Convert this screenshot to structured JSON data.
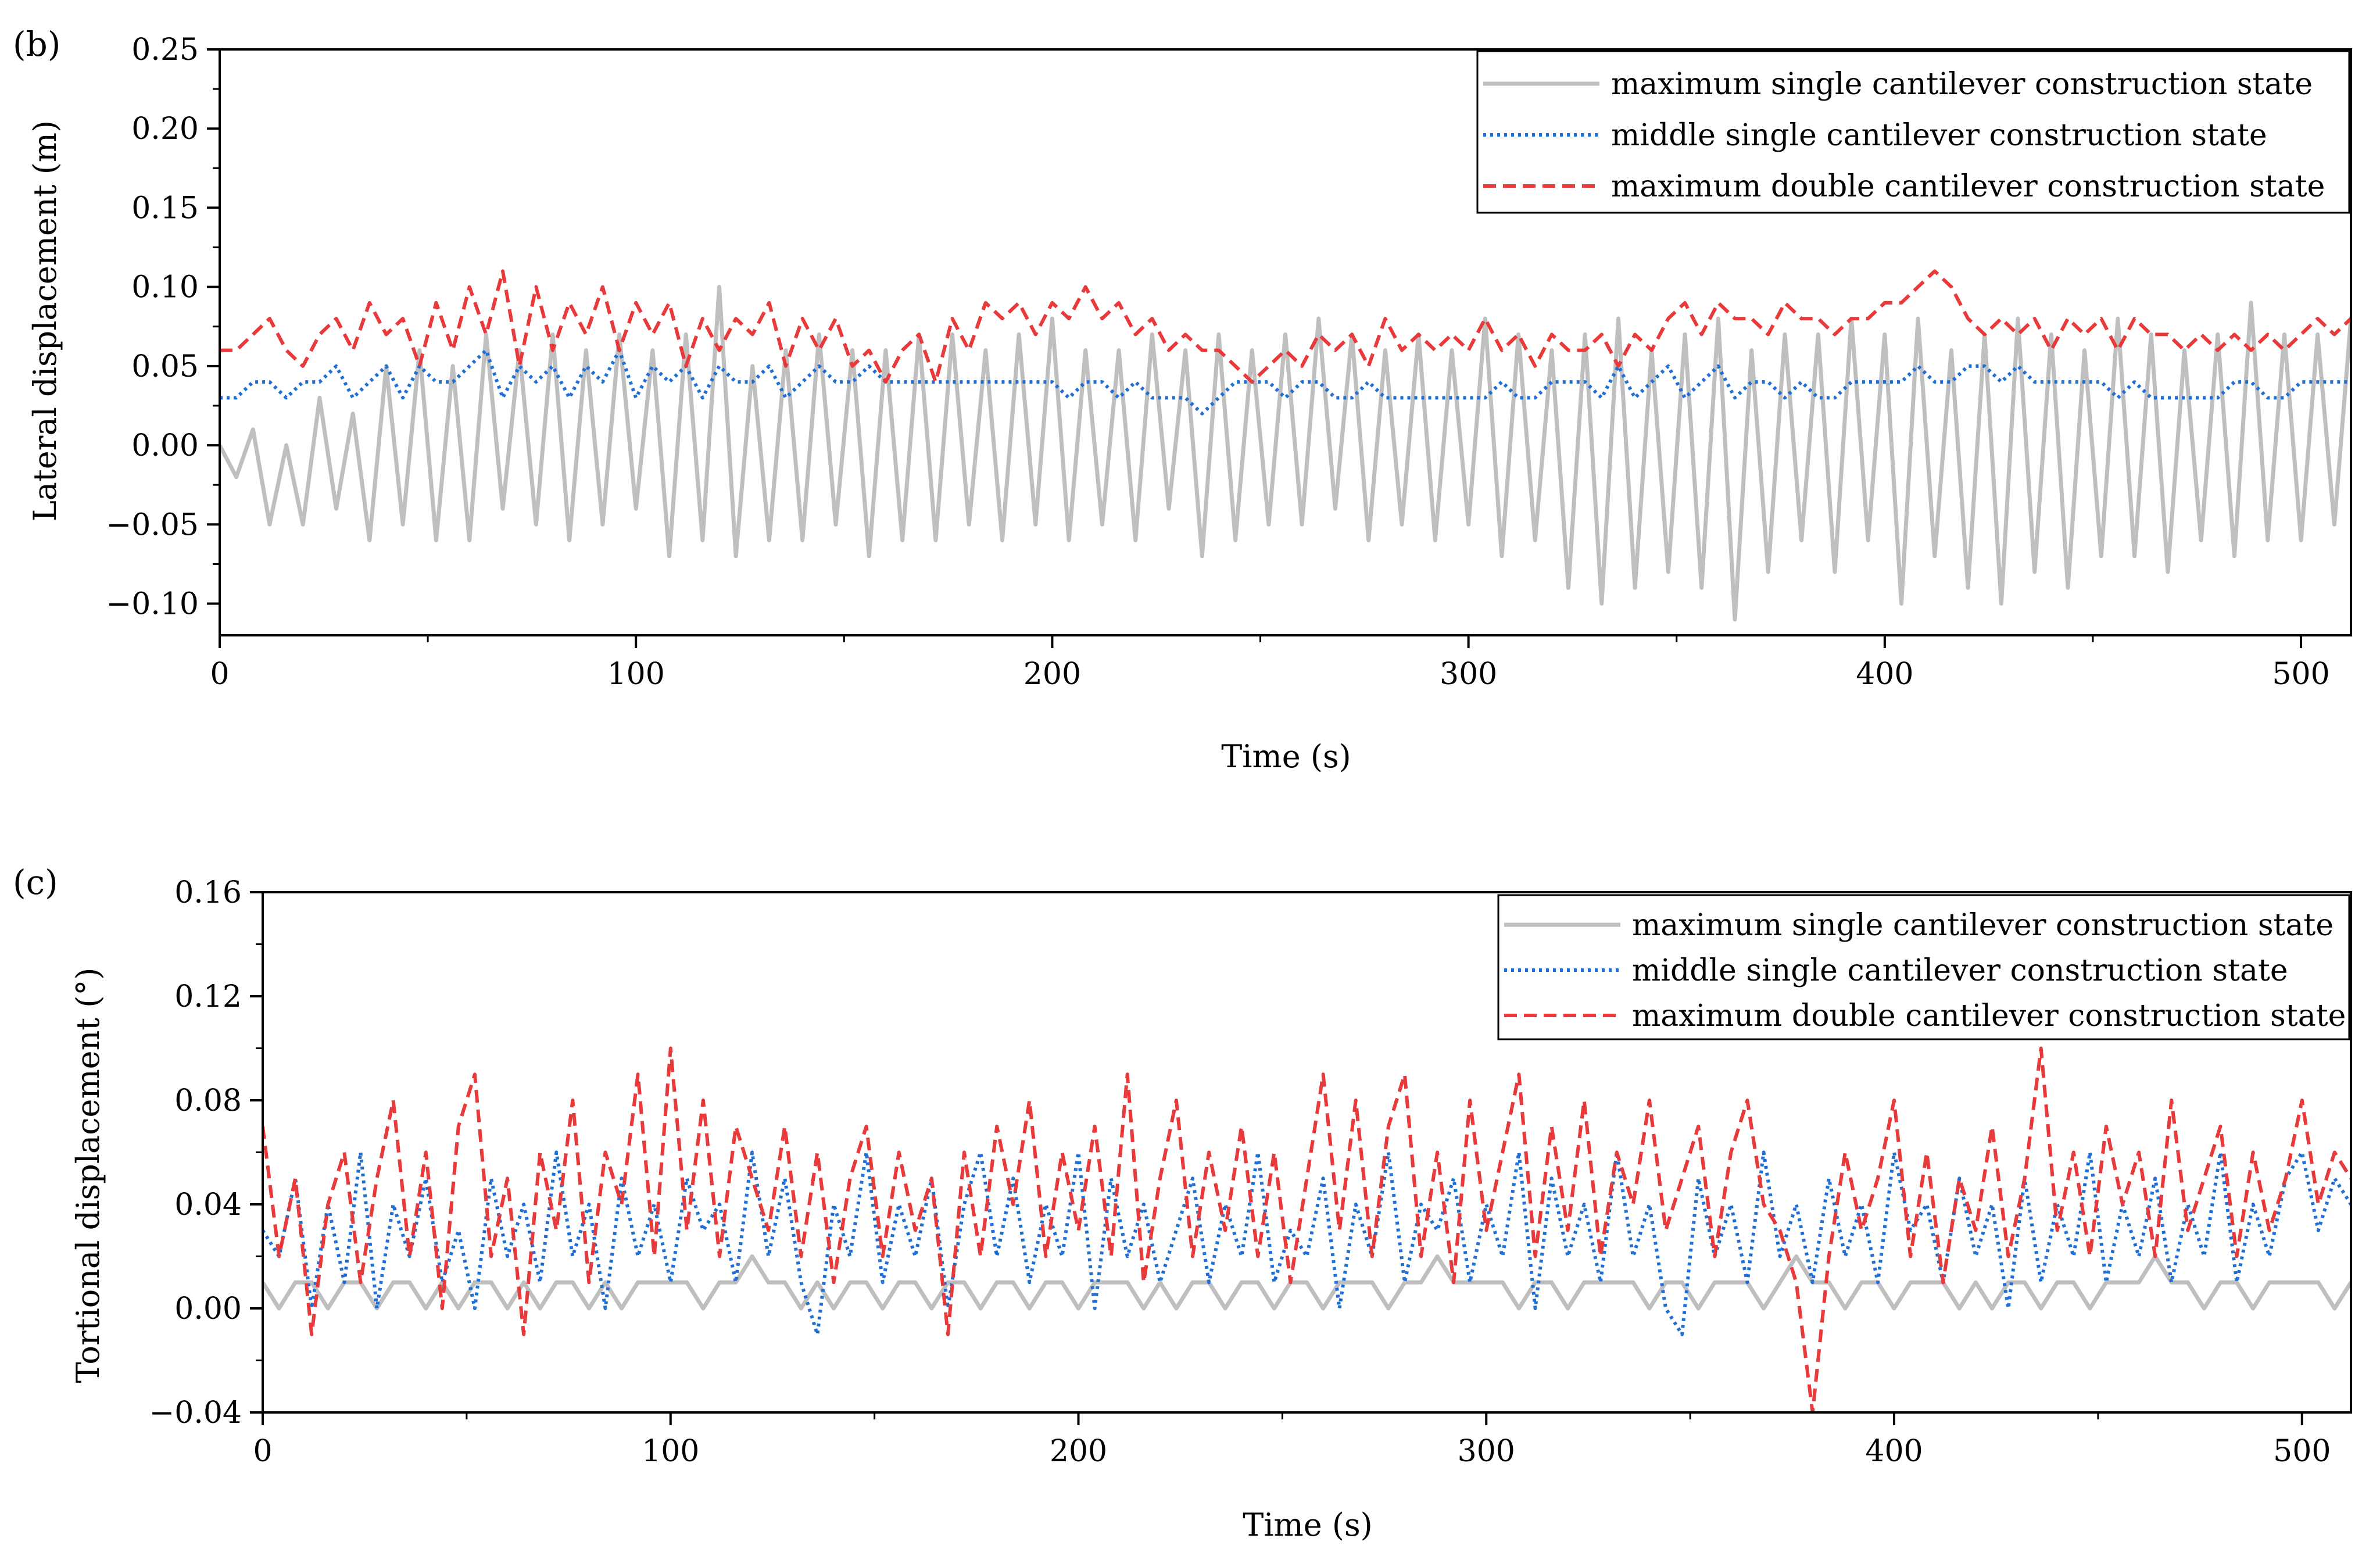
{
  "colors": {
    "max_single": "#bfbfbf",
    "middle_single": "#1f6fd6",
    "max_double": "#e8393b",
    "axis": "#000000"
  },
  "chart_data": [
    {
      "panel_label": "(b)",
      "type": "line",
      "xlabel": "Time (s)",
      "ylabel": "Lateral displacement (m)",
      "xlim": [
        0,
        512
      ],
      "ylim": [
        -0.12,
        0.25
      ],
      "xticks": [
        0,
        100,
        200,
        300,
        400,
        500
      ],
      "xtick_labels": [
        "0",
        "100",
        "200",
        "300",
        "400",
        "500"
      ],
      "yticks": [
        -0.1,
        -0.05,
        0.0,
        0.05,
        0.1,
        0.15,
        0.2,
        0.25
      ],
      "ytick_labels": [
        "−0.10",
        "−0.05",
        "0.00",
        "0.05",
        "0.10",
        "0.15",
        "0.20",
        "0.25"
      ],
      "grid": false,
      "legend_position": "top-right",
      "series": [
        {
          "name": "maximum single cantilever construction state",
          "color_key": "max_single",
          "style": "solid",
          "sample_dt": 4,
          "values": [
            0.0,
            -0.02,
            0.01,
            -0.05,
            0.0,
            -0.05,
            0.03,
            -0.04,
            0.02,
            -0.06,
            0.05,
            -0.05,
            0.06,
            -0.06,
            0.05,
            -0.06,
            0.07,
            -0.04,
            0.06,
            -0.05,
            0.07,
            -0.06,
            0.06,
            -0.05,
            0.07,
            -0.04,
            0.06,
            -0.07,
            0.07,
            -0.06,
            0.1,
            -0.07,
            0.05,
            -0.06,
            0.06,
            -0.06,
            0.07,
            -0.05,
            0.06,
            -0.07,
            0.06,
            -0.06,
            0.07,
            -0.06,
            0.07,
            -0.05,
            0.06,
            -0.06,
            0.07,
            -0.05,
            0.08,
            -0.06,
            0.06,
            -0.05,
            0.06,
            -0.06,
            0.07,
            -0.04,
            0.06,
            -0.07,
            0.07,
            -0.06,
            0.06,
            -0.05,
            0.07,
            -0.05,
            0.08,
            -0.04,
            0.07,
            -0.06,
            0.06,
            -0.05,
            0.07,
            -0.06,
            0.06,
            -0.05,
            0.08,
            -0.07,
            0.07,
            -0.06,
            0.06,
            -0.09,
            0.07,
            -0.1,
            0.08,
            -0.09,
            0.06,
            -0.08,
            0.07,
            -0.09,
            0.08,
            -0.11,
            0.06,
            -0.08,
            0.07,
            -0.06,
            0.07,
            -0.08,
            0.08,
            -0.06,
            0.07,
            -0.1,
            0.08,
            -0.07,
            0.06,
            -0.09,
            0.07,
            -0.1,
            0.08,
            -0.08,
            0.07,
            -0.09,
            0.06,
            -0.07,
            0.08,
            -0.07,
            0.07,
            -0.08,
            0.06,
            -0.06,
            0.07,
            -0.07,
            0.09,
            -0.06,
            0.07,
            -0.06,
            0.07,
            -0.05,
            0.08,
            -0.03
          ]
        },
        {
          "name": "middle single cantilever construction state",
          "color_key": "middle_single",
          "style": "dotted",
          "sample_dt": 4,
          "values": [
            0.03,
            0.03,
            0.04,
            0.04,
            0.03,
            0.04,
            0.04,
            0.05,
            0.03,
            0.04,
            0.05,
            0.03,
            0.05,
            0.04,
            0.04,
            0.05,
            0.06,
            0.03,
            0.05,
            0.04,
            0.05,
            0.03,
            0.05,
            0.04,
            0.06,
            0.03,
            0.05,
            0.04,
            0.05,
            0.03,
            0.05,
            0.04,
            0.04,
            0.05,
            0.03,
            0.04,
            0.05,
            0.04,
            0.04,
            0.05,
            0.04,
            0.04,
            0.04,
            0.04,
            0.04,
            0.04,
            0.04,
            0.04,
            0.04,
            0.04,
            0.04,
            0.03,
            0.04,
            0.04,
            0.03,
            0.04,
            0.03,
            0.03,
            0.03,
            0.02,
            0.03,
            0.04,
            0.04,
            0.04,
            0.03,
            0.04,
            0.04,
            0.03,
            0.03,
            0.04,
            0.03,
            0.03,
            0.03,
            0.03,
            0.03,
            0.03,
            0.03,
            0.04,
            0.03,
            0.03,
            0.04,
            0.04,
            0.04,
            0.03,
            0.05,
            0.03,
            0.04,
            0.05,
            0.03,
            0.04,
            0.05,
            0.03,
            0.04,
            0.04,
            0.03,
            0.04,
            0.03,
            0.03,
            0.04,
            0.04,
            0.04,
            0.04,
            0.05,
            0.04,
            0.04,
            0.05,
            0.05,
            0.04,
            0.05,
            0.04,
            0.04,
            0.04,
            0.04,
            0.04,
            0.03,
            0.04,
            0.03,
            0.03,
            0.03,
            0.03,
            0.03,
            0.04,
            0.04,
            0.03,
            0.03,
            0.04,
            0.04,
            0.04,
            0.04
          ]
        },
        {
          "name": "maximum double cantilever construction state",
          "color_key": "max_double",
          "style": "dashed",
          "sample_dt": 4,
          "values": [
            0.06,
            0.06,
            0.07,
            0.08,
            0.06,
            0.05,
            0.07,
            0.08,
            0.06,
            0.09,
            0.07,
            0.08,
            0.05,
            0.09,
            0.06,
            0.1,
            0.07,
            0.11,
            0.05,
            0.1,
            0.06,
            0.09,
            0.07,
            0.1,
            0.06,
            0.09,
            0.07,
            0.09,
            0.05,
            0.08,
            0.06,
            0.08,
            0.07,
            0.09,
            0.05,
            0.08,
            0.06,
            0.08,
            0.05,
            0.06,
            0.04,
            0.06,
            0.07,
            0.04,
            0.08,
            0.06,
            0.09,
            0.08,
            0.09,
            0.07,
            0.09,
            0.08,
            0.1,
            0.08,
            0.09,
            0.07,
            0.08,
            0.06,
            0.07,
            0.06,
            0.06,
            0.05,
            0.04,
            0.05,
            0.06,
            0.05,
            0.07,
            0.06,
            0.07,
            0.05,
            0.08,
            0.06,
            0.07,
            0.06,
            0.07,
            0.06,
            0.08,
            0.06,
            0.07,
            0.05,
            0.07,
            0.06,
            0.06,
            0.07,
            0.05,
            0.07,
            0.06,
            0.08,
            0.09,
            0.07,
            0.09,
            0.08,
            0.08,
            0.07,
            0.09,
            0.08,
            0.08,
            0.07,
            0.08,
            0.08,
            0.09,
            0.09,
            0.1,
            0.11,
            0.1,
            0.08,
            0.07,
            0.08,
            0.07,
            0.08,
            0.06,
            0.08,
            0.07,
            0.08,
            0.06,
            0.08,
            0.07,
            0.07,
            0.06,
            0.07,
            0.06,
            0.07,
            0.06,
            0.07,
            0.06,
            0.07,
            0.08,
            0.07,
            0.08
          ]
        }
      ]
    },
    {
      "panel_label": "(c)",
      "type": "line",
      "xlabel": "Time (s)",
      "ylabel": "Tortional displacement (°)",
      "xlim": [
        0,
        512
      ],
      "ylim": [
        -0.04,
        0.16
      ],
      "xticks": [
        0,
        100,
        200,
        300,
        400,
        500
      ],
      "xtick_labels": [
        "0",
        "100",
        "200",
        "300",
        "400",
        "500"
      ],
      "yticks": [
        -0.04,
        0.0,
        0.04,
        0.08,
        0.12,
        0.16
      ],
      "ytick_labels": [
        "−0.04",
        "0.00",
        "0.04",
        "0.08",
        "0.12",
        "0.16"
      ],
      "grid": false,
      "legend_position": "top-right",
      "series": [
        {
          "name": "maximum single cantilever construction state",
          "color_key": "max_single",
          "style": "solid",
          "sample_dt": 4,
          "values": [
            0.01,
            0.0,
            0.01,
            0.01,
            0.0,
            0.01,
            0.01,
            0.0,
            0.01,
            0.01,
            0.0,
            0.01,
            0.0,
            0.01,
            0.01,
            0.0,
            0.01,
            0.0,
            0.01,
            0.01,
            0.0,
            0.01,
            0.0,
            0.01,
            0.01,
            0.01,
            0.01,
            0.0,
            0.01,
            0.01,
            0.02,
            0.01,
            0.01,
            0.0,
            0.01,
            0.0,
            0.01,
            0.01,
            0.0,
            0.01,
            0.01,
            0.0,
            0.01,
            0.01,
            0.0,
            0.01,
            0.01,
            0.0,
            0.01,
            0.01,
            0.0,
            0.01,
            0.01,
            0.01,
            0.0,
            0.01,
            0.0,
            0.01,
            0.01,
            0.0,
            0.01,
            0.01,
            0.0,
            0.01,
            0.01,
            0.0,
            0.01,
            0.01,
            0.01,
            0.0,
            0.01,
            0.01,
            0.02,
            0.01,
            0.01,
            0.01,
            0.01,
            0.0,
            0.01,
            0.01,
            0.0,
            0.01,
            0.01,
            0.01,
            0.01,
            0.0,
            0.01,
            0.01,
            0.0,
            0.01,
            0.01,
            0.01,
            0.0,
            0.01,
            0.02,
            0.01,
            0.01,
            0.0,
            0.01,
            0.01,
            0.0,
            0.01,
            0.01,
            0.01,
            0.0,
            0.01,
            0.0,
            0.01,
            0.01,
            0.0,
            0.01,
            0.01,
            0.0,
            0.01,
            0.01,
            0.01,
            0.02,
            0.01,
            0.01,
            0.0,
            0.01,
            0.01,
            0.0,
            0.01,
            0.01,
            0.01,
            0.01,
            0.0,
            0.01
          ]
        },
        {
          "name": "middle single cantilever construction state",
          "color_key": "middle_single",
          "style": "dotted",
          "sample_dt": 4,
          "values": [
            0.03,
            0.02,
            0.05,
            0.0,
            0.04,
            0.01,
            0.06,
            0.0,
            0.04,
            0.02,
            0.05,
            0.01,
            0.03,
            0.0,
            0.05,
            0.02,
            0.04,
            0.01,
            0.06,
            0.02,
            0.04,
            0.0,
            0.05,
            0.02,
            0.04,
            0.01,
            0.05,
            0.03,
            0.04,
            0.01,
            0.06,
            0.02,
            0.05,
            0.01,
            -0.01,
            0.04,
            0.02,
            0.06,
            0.01,
            0.04,
            0.02,
            0.05,
            0.0,
            0.04,
            0.06,
            0.02,
            0.05,
            0.01,
            0.04,
            0.02,
            0.06,
            0.0,
            0.05,
            0.02,
            0.04,
            0.01,
            0.03,
            0.05,
            0.01,
            0.04,
            0.02,
            0.06,
            0.01,
            0.03,
            0.02,
            0.05,
            0.0,
            0.04,
            0.02,
            0.06,
            0.01,
            0.04,
            0.03,
            0.05,
            0.01,
            0.04,
            0.02,
            0.06,
            0.0,
            0.05,
            0.02,
            0.04,
            0.01,
            0.06,
            0.02,
            0.04,
            0.0,
            -0.01,
            0.05,
            0.02,
            0.04,
            0.01,
            0.06,
            0.02,
            0.04,
            0.01,
            0.05,
            0.02,
            0.04,
            0.01,
            0.06,
            0.03,
            0.04,
            0.01,
            0.05,
            0.02,
            0.04,
            0.0,
            0.05,
            0.01,
            0.04,
            0.02,
            0.06,
            0.01,
            0.04,
            0.02,
            0.05,
            0.01,
            0.04,
            0.02,
            0.06,
            0.01,
            0.04,
            0.02,
            0.05,
            0.06,
            0.03,
            0.05,
            0.04
          ]
        },
        {
          "name": "maximum double cantilever construction state",
          "color_key": "max_double",
          "style": "dashed",
          "sample_dt": 4,
          "values": [
            0.07,
            0.02,
            0.05,
            -0.01,
            0.04,
            0.06,
            0.01,
            0.05,
            0.08,
            0.02,
            0.06,
            0.0,
            0.07,
            0.09,
            0.02,
            0.05,
            -0.01,
            0.06,
            0.03,
            0.08,
            0.01,
            0.06,
            0.04,
            0.09,
            0.02,
            0.1,
            0.03,
            0.08,
            0.02,
            0.07,
            0.05,
            0.03,
            0.07,
            0.02,
            0.06,
            0.01,
            0.05,
            0.07,
            0.02,
            0.06,
            0.03,
            0.05,
            -0.01,
            0.06,
            0.02,
            0.07,
            0.04,
            0.08,
            0.02,
            0.06,
            0.03,
            0.07,
            0.02,
            0.09,
            0.01,
            0.05,
            0.08,
            0.02,
            0.06,
            0.03,
            0.07,
            0.02,
            0.06,
            0.01,
            0.05,
            0.09,
            0.03,
            0.08,
            0.02,
            0.07,
            0.09,
            0.02,
            0.06,
            0.01,
            0.08,
            0.03,
            0.06,
            0.09,
            0.02,
            0.07,
            0.03,
            0.08,
            0.02,
            0.06,
            0.04,
            0.08,
            0.03,
            0.05,
            0.07,
            0.02,
            0.06,
            0.08,
            0.04,
            0.03,
            0.01,
            -0.04,
            0.02,
            0.06,
            0.03,
            0.05,
            0.08,
            0.02,
            0.06,
            0.01,
            0.05,
            0.03,
            0.07,
            0.02,
            0.05,
            0.1,
            0.03,
            0.06,
            0.02,
            0.07,
            0.04,
            0.06,
            0.02,
            0.08,
            0.03,
            0.05,
            0.07,
            0.02,
            0.06,
            0.03,
            0.05,
            0.08,
            0.04,
            0.06,
            0.05
          ]
        }
      ]
    }
  ]
}
